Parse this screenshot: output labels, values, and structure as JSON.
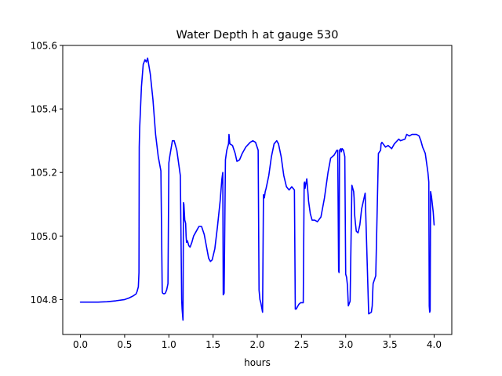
{
  "chart_data": {
    "type": "line",
    "title": "Water Depth h at gauge 530",
    "xlabel": "hours",
    "ylabel": "",
    "xlim": [
      -0.2,
      4.2
    ],
    "ylim": [
      104.69,
      105.6
    ],
    "xticks": [
      0.0,
      0.5,
      1.0,
      1.5,
      2.0,
      2.5,
      3.0,
      3.5,
      4.0
    ],
    "xtick_labels": [
      "0.0",
      "0.5",
      "1.0",
      "1.5",
      "2.0",
      "2.5",
      "3.0",
      "3.5",
      "4.0"
    ],
    "yticks": [
      104.8,
      105.0,
      105.2,
      105.4,
      105.6
    ],
    "ytick_labels": [
      "104.8",
      "105.0",
      "105.2",
      "105.4",
      "105.6"
    ],
    "grid": false,
    "legend": "none",
    "series": [
      {
        "color": "#0000ff",
        "x": [
          0.0,
          0.2,
          0.3,
          0.4,
          0.5,
          0.55,
          0.6,
          0.63,
          0.64,
          0.655,
          0.662,
          0.665,
          0.67,
          0.69,
          0.71,
          0.73,
          0.745,
          0.76,
          0.775,
          0.79,
          0.82,
          0.85,
          0.88,
          0.91,
          0.925,
          0.93,
          0.945,
          0.96,
          0.975,
          0.99,
          1.0,
          1.005,
          1.01,
          1.04,
          1.06,
          1.09,
          1.11,
          1.13,
          1.145,
          1.15,
          1.16,
          1.165,
          1.17,
          1.18,
          1.19,
          1.195,
          1.2,
          1.21,
          1.225,
          1.24,
          1.26,
          1.28,
          1.32,
          1.34,
          1.37,
          1.4,
          1.43,
          1.45,
          1.47,
          1.49,
          1.52,
          1.55,
          1.58,
          1.6,
          1.61,
          1.615,
          1.625,
          1.64,
          1.655,
          1.665,
          1.675,
          1.68,
          1.69,
          1.72,
          1.75,
          1.77,
          1.8,
          1.83,
          1.87,
          1.92,
          1.95,
          1.98,
          2.01,
          2.02,
          2.03,
          2.04,
          2.06,
          2.07,
          2.08,
          2.09,
          2.1,
          2.13,
          2.16,
          2.19,
          2.22,
          2.24,
          2.27,
          2.3,
          2.33,
          2.36,
          2.39,
          2.42,
          2.43,
          2.44,
          2.45,
          2.47,
          2.49,
          2.52,
          2.53,
          2.535,
          2.54,
          2.55,
          2.56,
          2.575,
          2.58,
          2.595,
          2.6,
          2.62,
          2.65,
          2.68,
          2.72,
          2.76,
          2.8,
          2.83,
          2.87,
          2.9,
          2.91,
          2.92,
          2.925,
          2.93,
          2.945,
          2.95,
          2.96,
          2.975,
          2.99,
          3.0,
          3.01,
          3.02,
          3.03,
          3.05,
          3.07,
          3.09,
          3.095,
          3.1,
          3.11,
          3.12,
          3.14,
          3.16,
          3.18,
          3.22,
          3.26,
          3.29,
          3.3,
          3.305,
          3.31,
          3.34,
          3.37,
          3.395,
          3.4,
          3.41,
          3.45,
          3.48,
          3.52,
          3.55,
          3.6,
          3.62,
          3.67,
          3.69,
          3.72,
          3.75,
          3.8,
          3.83,
          3.85,
          3.87,
          3.9,
          3.93,
          3.94,
          3.945,
          3.95,
          3.955,
          3.96,
          3.97,
          3.98,
          3.99,
          4.0
        ],
        "y": [
          104.792,
          104.792,
          104.793,
          104.796,
          104.8,
          104.805,
          104.812,
          104.818,
          104.825,
          104.84,
          104.885,
          105.28,
          105.34,
          105.47,
          105.54,
          105.555,
          105.548,
          105.56,
          105.535,
          105.51,
          105.43,
          105.32,
          105.25,
          105.205,
          104.825,
          104.82,
          104.818,
          104.82,
          104.83,
          104.85,
          105.23,
          105.24,
          105.25,
          105.3,
          105.3,
          105.27,
          105.23,
          105.19,
          104.8,
          104.77,
          104.735,
          105.105,
          105.1,
          105.05,
          105.04,
          105.0,
          104.98,
          104.985,
          104.97,
          104.965,
          104.98,
          105.0,
          105.02,
          105.03,
          105.03,
          105.005,
          104.96,
          104.93,
          104.92,
          104.925,
          104.96,
          105.03,
          105.11,
          105.18,
          105.2,
          104.815,
          104.82,
          105.24,
          105.27,
          105.28,
          105.29,
          105.32,
          105.29,
          105.285,
          105.26,
          105.235,
          105.24,
          105.26,
          105.28,
          105.295,
          105.3,
          105.295,
          105.27,
          104.83,
          104.8,
          104.79,
          104.76,
          105.13,
          105.12,
          105.14,
          105.15,
          105.19,
          105.25,
          105.29,
          105.3,
          105.29,
          105.25,
          105.19,
          105.155,
          105.145,
          105.155,
          105.145,
          104.77,
          104.77,
          104.775,
          104.785,
          104.79,
          104.79,
          105.165,
          105.17,
          105.15,
          105.165,
          105.18,
          105.13,
          105.11,
          105.08,
          105.07,
          105.05,
          105.05,
          105.045,
          105.06,
          105.12,
          105.2,
          105.245,
          105.255,
          105.27,
          105.27,
          104.89,
          104.885,
          105.27,
          105.275,
          105.265,
          105.275,
          105.27,
          105.25,
          104.88,
          104.87,
          104.845,
          104.78,
          104.795,
          105.16,
          105.14,
          105.12,
          105.07,
          105.04,
          105.015,
          105.01,
          105.035,
          105.085,
          105.135,
          104.755,
          104.76,
          104.78,
          104.82,
          104.85,
          104.875,
          105.26,
          105.27,
          105.29,
          105.295,
          105.28,
          105.285,
          105.275,
          105.29,
          105.305,
          105.3,
          105.305,
          105.32,
          105.315,
          105.32,
          105.32,
          105.315,
          105.3,
          105.28,
          105.26,
          105.2,
          105.17,
          104.78,
          104.76,
          104.765,
          105.14,
          105.125,
          105.1,
          105.075,
          105.035
        ]
      }
    ]
  }
}
